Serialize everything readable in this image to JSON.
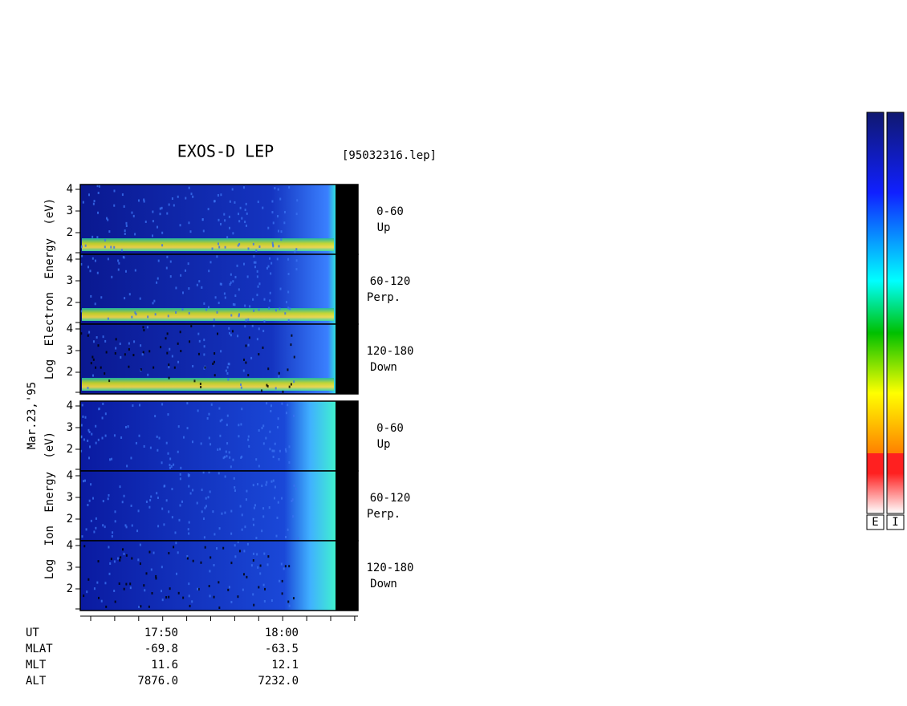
{
  "title": "EXOS-D LEP",
  "file": "[95032316.lep]",
  "date": "Mar.23,'95",
  "groups": [
    {
      "ylabel": "Log Electron Energy (eV)",
      "panels": [
        [
          "0-60",
          "Up"
        ],
        [
          "60-120",
          "Perp."
        ],
        [
          "120-180",
          "Down"
        ]
      ]
    },
    {
      "ylabel": "Log Ion Energy (eV)",
      "panels": [
        [
          "0-60",
          "Up"
        ],
        [
          "60-120",
          "Perp."
        ],
        [
          "120-180",
          "Down"
        ]
      ]
    }
  ],
  "yticks": [
    "4",
    "3",
    "2"
  ],
  "ephemeris": [
    [
      "UT",
      "17:50",
      "18:00"
    ],
    [
      "MLAT",
      "-69.8",
      "-63.5"
    ],
    [
      "MLT",
      "11.6",
      "12.1"
    ],
    [
      "ALT",
      "7876.0",
      "7232.0"
    ]
  ],
  "colorbars": [
    "E",
    "I"
  ]
}
